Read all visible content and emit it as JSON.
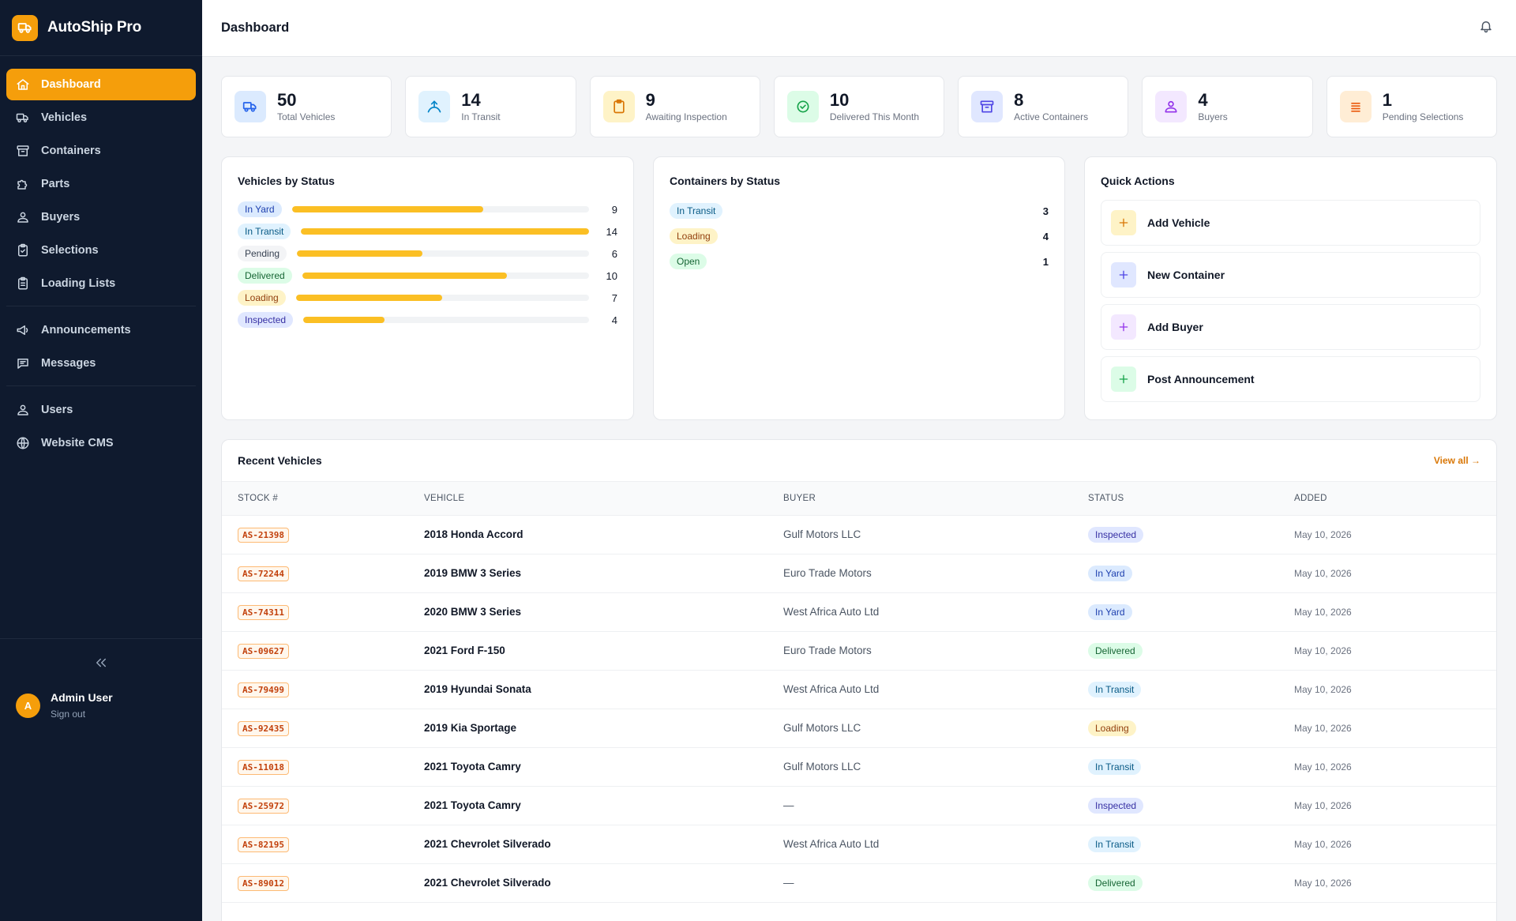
{
  "app": {
    "name": "AutoShip Pro"
  },
  "sidebar": {
    "items": [
      {
        "label": "Dashboard",
        "icon": "home-icon"
      },
      {
        "label": "Vehicles",
        "icon": "truck-icon"
      },
      {
        "label": "Containers",
        "icon": "archive-icon"
      },
      {
        "label": "Parts",
        "icon": "puzzle-icon"
      },
      {
        "label": "Buyers",
        "icon": "users-icon"
      },
      {
        "label": "Selections",
        "icon": "clipboard-check-icon"
      },
      {
        "label": "Loading Lists",
        "icon": "clipboard-list-icon"
      },
      {
        "label": "Announcements",
        "icon": "megaphone-icon"
      },
      {
        "label": "Messages",
        "icon": "message-icon"
      },
      {
        "label": "Users",
        "icon": "users-icon"
      },
      {
        "label": "Website CMS",
        "icon": "globe-icon"
      }
    ],
    "active": "Dashboard"
  },
  "user": {
    "initial": "A",
    "name": "Admin User",
    "signout": "Sign out"
  },
  "header": {
    "title": "Dashboard"
  },
  "stats": [
    {
      "value": "50",
      "label": "Total Vehicles",
      "icon": "truck-icon",
      "bg": "#dbeafe",
      "fg": "#2563eb"
    },
    {
      "value": "14",
      "label": "In Transit",
      "icon": "transit-icon",
      "bg": "#e0f2fe",
      "fg": "#0284c7"
    },
    {
      "value": "9",
      "label": "Awaiting Inspection",
      "icon": "clipboard-icon",
      "bg": "#fef3c7",
      "fg": "#d97706"
    },
    {
      "value": "10",
      "label": "Delivered This Month",
      "icon": "check-circle-icon",
      "bg": "#dcfce7",
      "fg": "#16a34a"
    },
    {
      "value": "8",
      "label": "Active Containers",
      "icon": "archive-icon",
      "bg": "#e0e7ff",
      "fg": "#4f46e5"
    },
    {
      "value": "4",
      "label": "Buyers",
      "icon": "users-icon",
      "bg": "#f3e8ff",
      "fg": "#9333ea"
    },
    {
      "value": "1",
      "label": "Pending Selections",
      "icon": "list-icon",
      "bg": "#ffedd5",
      "fg": "#ea580c"
    }
  ],
  "vehicles_by_status": {
    "title": "Vehicles by Status",
    "max": 14,
    "rows": [
      {
        "label": "In Yard",
        "count": 9,
        "style": "b-yard"
      },
      {
        "label": "In Transit",
        "count": 14,
        "style": "b-transit"
      },
      {
        "label": "Pending",
        "count": 6,
        "style": "b-pending"
      },
      {
        "label": "Delivered",
        "count": 10,
        "style": "b-delivered"
      },
      {
        "label": "Loading",
        "count": 7,
        "style": "b-loading"
      },
      {
        "label": "Inspected",
        "count": 4,
        "style": "b-inspected"
      }
    ]
  },
  "containers_by_status": {
    "title": "Containers by Status",
    "rows": [
      {
        "label": "In Transit",
        "count": "3",
        "style": "b-transit"
      },
      {
        "label": "Loading",
        "count": "4",
        "style": "b-loading"
      },
      {
        "label": "Open",
        "count": "1",
        "style": "b-open"
      }
    ]
  },
  "quick_actions": {
    "title": "Quick Actions",
    "items": [
      {
        "label": "Add Vehicle",
        "bg": "#fef3c7",
        "fg": "#d97706"
      },
      {
        "label": "New Container",
        "bg": "#e0e7ff",
        "fg": "#4f46e5"
      },
      {
        "label": "Add Buyer",
        "bg": "#f3e8ff",
        "fg": "#9333ea"
      },
      {
        "label": "Post Announcement",
        "bg": "#dcfce7",
        "fg": "#16a34a"
      }
    ]
  },
  "recent": {
    "title": "Recent Vehicles",
    "view_all": "View all →",
    "columns": [
      "STOCK #",
      "VEHICLE",
      "BUYER",
      "STATUS",
      "ADDED"
    ],
    "rows": [
      {
        "stock": "AS-21398",
        "vehicle": "2018 Honda Accord",
        "buyer": "Gulf Motors LLC",
        "status": "Inspected",
        "style": "b-inspected",
        "added": "May 10, 2026"
      },
      {
        "stock": "AS-72244",
        "vehicle": "2019 BMW 3 Series",
        "buyer": "Euro Trade Motors",
        "status": "In Yard",
        "style": "b-yard",
        "added": "May 10, 2026"
      },
      {
        "stock": "AS-74311",
        "vehicle": "2020 BMW 3 Series",
        "buyer": "West Africa Auto Ltd",
        "status": "In Yard",
        "style": "b-yard",
        "added": "May 10, 2026"
      },
      {
        "stock": "AS-09627",
        "vehicle": "2021 Ford F-150",
        "buyer": "Euro Trade Motors",
        "status": "Delivered",
        "style": "b-delivered",
        "added": "May 10, 2026"
      },
      {
        "stock": "AS-79499",
        "vehicle": "2019 Hyundai Sonata",
        "buyer": "West Africa Auto Ltd",
        "status": "In Transit",
        "style": "b-transit",
        "added": "May 10, 2026"
      },
      {
        "stock": "AS-92435",
        "vehicle": "2019 Kia Sportage",
        "buyer": "Gulf Motors LLC",
        "status": "Loading",
        "style": "b-loading",
        "added": "May 10, 2026"
      },
      {
        "stock": "AS-11018",
        "vehicle": "2021 Toyota Camry",
        "buyer": "Gulf Motors LLC",
        "status": "In Transit",
        "style": "b-transit",
        "added": "May 10, 2026"
      },
      {
        "stock": "AS-25972",
        "vehicle": "2021 Toyota Camry",
        "buyer": "—",
        "status": "Inspected",
        "style": "b-inspected",
        "added": "May 10, 2026"
      },
      {
        "stock": "AS-82195",
        "vehicle": "2021 Chevrolet Silverado",
        "buyer": "West Africa Auto Ltd",
        "status": "In Transit",
        "style": "b-transit",
        "added": "May 10, 2026"
      },
      {
        "stock": "AS-89012",
        "vehicle": "2021 Chevrolet Silverado",
        "buyer": "—",
        "status": "Delivered",
        "style": "b-delivered",
        "added": "May 10, 2026"
      }
    ]
  }
}
